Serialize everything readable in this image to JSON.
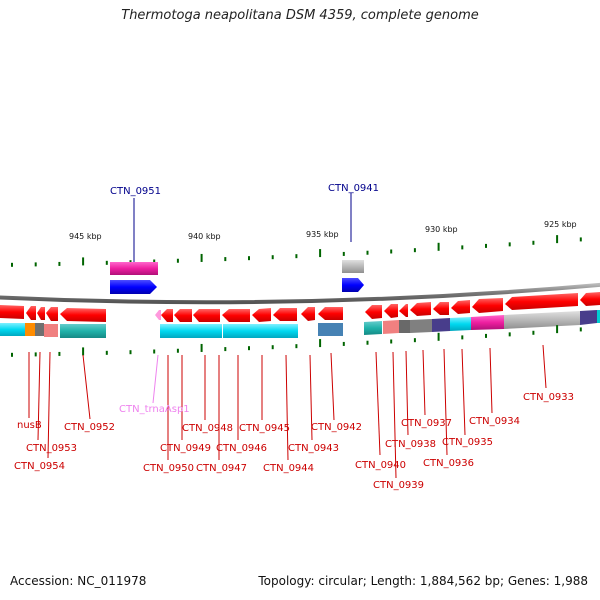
{
  "title": "Thermotoga neapolitana DSM 4359, complete genome",
  "footer": {
    "accession": "Accession: NC_011978",
    "stats": "Topology: circular; Length: 1,884,562 bp; Genes: 1,988"
  },
  "scale_ticks": [
    "945 kbp",
    "940 kbp",
    "935 kbp",
    "930 kbp",
    "925 kbp"
  ],
  "forward_genes": [
    "CTN_0951",
    "CTN_0941"
  ],
  "reverse_genes": [
    "nusB",
    "CTN_0953",
    "CTN_0954",
    "CTN_0952",
    "CTN_trnaAsp1",
    "CTN_0950",
    "CTN_0949",
    "CTN_0948",
    "CTN_0947",
    "CTN_0946",
    "CTN_0945",
    "CTN_0944",
    "CTN_0943",
    "CTN_0942",
    "CTN_0940",
    "CTN_0939",
    "CTN_0938",
    "CTN_0937",
    "CTN_0936",
    "CTN_0935",
    "CTN_0934",
    "CTN_0933"
  ],
  "colors": {
    "gene_arrow": "#ff0000",
    "forward_gene_label": "#00008b",
    "reverse_gene_label": "#cc0000",
    "trna_label": "#ee82ee",
    "backbone": "#808080",
    "tick": "#006400"
  }
}
